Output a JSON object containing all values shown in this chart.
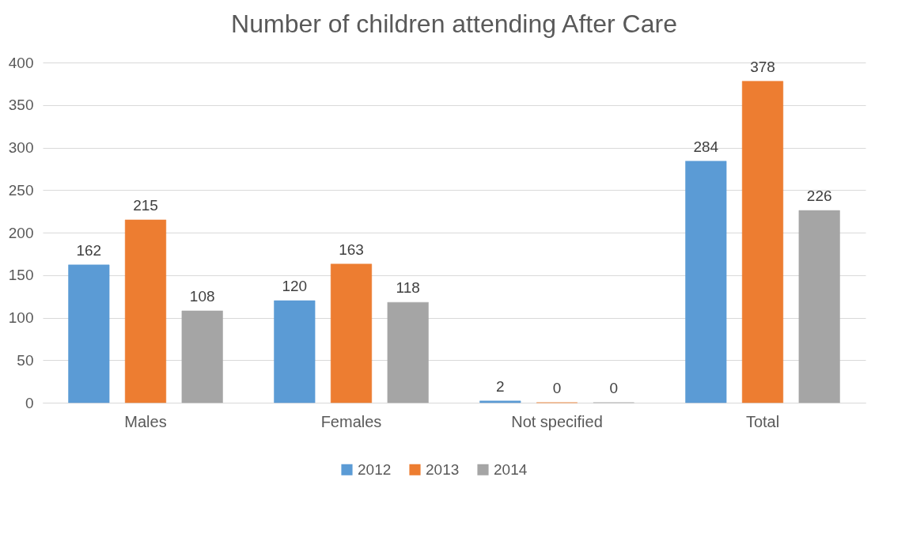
{
  "chart_data": {
    "type": "bar",
    "title": "Number of children attending After Care",
    "categories": [
      "Males",
      "Females",
      "Not specified",
      "Total"
    ],
    "series": [
      {
        "name": "2012",
        "color": "#5b9bd5",
        "values": [
          162,
          120,
          2,
          284
        ]
      },
      {
        "name": "2013",
        "color": "#ed7d31",
        "values": [
          215,
          163,
          0,
          378
        ]
      },
      {
        "name": "2014",
        "color": "#a5a5a5",
        "values": [
          108,
          118,
          0,
          226
        ]
      }
    ],
    "ylim": [
      0,
      400
    ],
    "yticks": [
      0,
      50,
      100,
      150,
      200,
      250,
      300,
      350,
      400
    ],
    "grid": "y",
    "legend": "bottom",
    "data_labels": true
  }
}
